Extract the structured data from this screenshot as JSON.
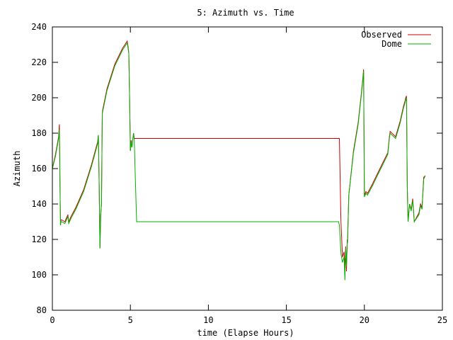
{
  "chart_data": {
    "type": "line",
    "title": "5: Azimuth vs. Time",
    "xlabel": "time (Elapse Hours)",
    "ylabel": "Azimuth",
    "xlim": [
      0,
      25
    ],
    "ylim": [
      80,
      240
    ],
    "xticks": [
      0,
      5,
      10,
      15,
      20,
      25
    ],
    "yticks": [
      80,
      100,
      120,
      140,
      160,
      180,
      200,
      220,
      240
    ],
    "grid": false,
    "legend_position": "top-right",
    "series": [
      {
        "name": "Observed",
        "color": "#cc0000",
        "x": [
          0.0,
          0.2,
          0.4,
          0.45,
          0.5,
          0.52,
          0.55,
          0.6,
          0.8,
          1.0,
          1.05,
          1.1,
          1.2,
          1.5,
          2.0,
          2.5,
          2.9,
          2.95,
          3.0,
          3.05,
          3.1,
          3.15,
          3.2,
          3.22,
          3.5,
          4.0,
          4.5,
          4.8,
          4.85,
          4.9,
          4.95,
          5.0,
          5.05,
          5.1,
          5.2,
          5.25,
          5.3,
          5.4,
          18.35,
          18.4,
          18.5,
          18.6,
          18.7,
          18.75,
          18.8,
          18.85,
          18.9,
          18.92,
          19.0,
          19.3,
          19.6,
          19.8,
          19.9,
          19.95,
          20.0,
          20.1,
          20.2,
          20.5,
          21.0,
          21.5,
          21.6,
          21.65,
          22.0,
          22.3,
          22.5,
          22.6,
          22.65,
          22.7,
          22.75,
          22.8,
          22.9,
          23.0,
          23.1,
          23.2,
          23.5,
          23.6,
          23.7,
          23.8,
          23.9
        ],
        "y": [
          160,
          168,
          178,
          185,
          143,
          128,
          131,
          131,
          130,
          134,
          129,
          131,
          133,
          138,
          148,
          162,
          175,
          179,
          151,
          115,
          134,
          140,
          191,
          193,
          205,
          219,
          228,
          232,
          229,
          225,
          200,
          170,
          176,
          172,
          180,
          177,
          177,
          177,
          177,
          177,
          130,
          110,
          113,
          104,
          116,
          102,
          120,
          118,
          145,
          170,
          186,
          202,
          211,
          216,
          145,
          147,
          146,
          151,
          160,
          169,
          178,
          181,
          178,
          187,
          195,
          198,
          200,
          201,
          150,
          130,
          140,
          137,
          143,
          130,
          135,
          140,
          138,
          155,
          156
        ]
      },
      {
        "name": "Dome",
        "color": "#00b000",
        "x": [
          0.0,
          0.2,
          0.4,
          0.45,
          0.5,
          0.52,
          0.55,
          0.6,
          0.8,
          1.0,
          1.05,
          1.1,
          1.2,
          1.5,
          2.0,
          2.5,
          2.9,
          2.95,
          3.0,
          3.05,
          3.1,
          3.15,
          3.2,
          3.22,
          3.5,
          4.0,
          4.5,
          4.8,
          4.85,
          4.9,
          4.95,
          5.0,
          5.05,
          5.1,
          5.2,
          5.25,
          5.3,
          5.4,
          18.35,
          18.4,
          18.5,
          18.6,
          18.7,
          18.75,
          18.8,
          18.85,
          18.9,
          18.92,
          19.0,
          19.3,
          19.6,
          19.8,
          19.9,
          19.95,
          20.0,
          20.1,
          20.2,
          20.5,
          21.0,
          21.5,
          21.6,
          21.65,
          22.0,
          22.3,
          22.5,
          22.6,
          22.65,
          22.7,
          22.75,
          22.8,
          22.9,
          23.0,
          23.1,
          23.2,
          23.5,
          23.6,
          23.7,
          23.8,
          23.9
        ],
        "y": [
          160,
          167,
          177,
          182,
          143,
          128,
          130,
          130,
          129,
          133,
          129,
          130,
          132,
          137,
          147,
          161,
          174,
          179,
          151,
          115,
          134,
          140,
          191,
          192,
          204,
          218,
          227,
          231,
          228,
          225,
          200,
          170,
          175,
          172,
          180,
          176,
          160,
          130,
          130,
          128,
          112,
          107,
          110,
          97,
          115,
          105,
          118,
          118,
          145,
          169,
          185,
          201,
          210,
          215,
          144,
          146,
          145,
          150,
          159,
          168,
          177,
          180,
          177,
          186,
          194,
          197,
          199,
          200,
          150,
          130,
          140,
          136,
          142,
          130,
          134,
          139,
          137,
          154,
          156
        ]
      }
    ]
  }
}
